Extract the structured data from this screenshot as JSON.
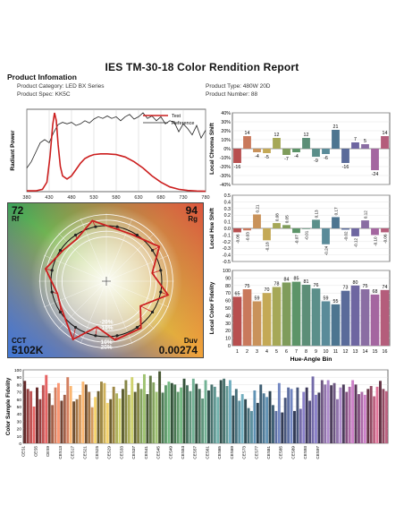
{
  "report": {
    "title": "IES TM-30-18 Color Rendition Report",
    "section_title": "Product Infomation",
    "category": "Product Category: LED BX Series",
    "spec": "Product Spec: KK5C",
    "type": "Product Type: 480W  20D",
    "number": "Product Number: 88"
  },
  "colors": {
    "test": "#cc1f1f",
    "reference": "#222222",
    "bins": [
      "#b84f4f",
      "#c9795c",
      "#c9925a",
      "#c4a956",
      "#a6a857",
      "#7f9c5b",
      "#5c9468",
      "#5c8e77",
      "#5b8f8a",
      "#5a8b99",
      "#4d7590",
      "#5a6b9a",
      "#6e66a1",
      "#8a6ea3",
      "#a466a0",
      "#b45d7b"
    ]
  },
  "spd": {
    "ylabel": "Radiant Power",
    "x_ticks": [
      "380",
      "430",
      "480",
      "530",
      "580",
      "630",
      "680",
      "730",
      "780"
    ],
    "xlim": [
      380,
      780
    ],
    "legend_test": "Test",
    "legend_reference": "Reference",
    "test_wl": [
      380,
      400,
      415,
      425,
      432,
      438,
      442,
      446,
      450,
      455,
      460,
      470,
      480,
      490,
      500,
      510,
      520,
      530,
      545,
      560,
      580,
      600,
      620,
      640,
      660,
      680,
      700,
      720,
      740,
      760,
      780
    ],
    "test_power": [
      0.01,
      0.01,
      0.03,
      0.12,
      0.45,
      0.85,
      1.0,
      0.9,
      0.6,
      0.32,
      0.2,
      0.16,
      0.2,
      0.28,
      0.36,
      0.42,
      0.45,
      0.47,
      0.48,
      0.48,
      0.47,
      0.44,
      0.38,
      0.3,
      0.2,
      0.12,
      0.06,
      0.03,
      0.015,
      0.008,
      0.004
    ],
    "ref_wl": [
      380,
      390,
      400,
      410,
      420,
      430,
      440,
      450,
      460,
      470,
      480,
      490,
      500,
      510,
      520,
      530,
      540,
      550,
      560,
      570,
      580,
      590,
      600,
      610,
      620,
      630,
      640,
      650,
      660,
      670,
      680,
      690,
      700,
      710,
      720,
      730,
      740,
      750,
      760,
      770,
      780
    ],
    "ref_power": [
      0.3,
      0.38,
      0.5,
      0.62,
      0.66,
      0.62,
      0.75,
      0.85,
      0.88,
      0.86,
      0.88,
      0.84,
      0.86,
      0.9,
      0.87,
      0.92,
      0.95,
      0.93,
      0.96,
      0.93,
      0.95,
      0.9,
      0.95,
      0.98,
      0.92,
      0.95,
      1.0,
      0.93,
      0.96,
      0.9,
      0.95,
      0.86,
      0.9,
      0.88,
      0.76,
      0.86,
      0.8,
      0.72,
      0.84,
      0.68,
      0.78
    ]
  },
  "chroma": {
    "ylabel": "Local Chroma Shift",
    "y_ticks": [
      "40%",
      "30%",
      "20%",
      "10%",
      "0%",
      "-10%",
      "-20%",
      "-30%",
      "-40%"
    ],
    "values": [
      -16,
      14,
      -4,
      -5,
      12,
      -7,
      -4,
      12,
      -9,
      -6,
      21,
      -16,
      7,
      5,
      -24,
      14
    ],
    "labels": [
      "-16",
      "14",
      "-4",
      "-5",
      "12",
      "-7",
      "-4",
      "12",
      "-9",
      "-6",
      "21",
      "-16",
      "7",
      "5",
      "-24",
      "14"
    ]
  },
  "hue": {
    "ylabel": "Local Hue Shift",
    "y_ticks": [
      "0.5",
      "0.4",
      "0.3",
      "0.2",
      "0.1",
      "0.0",
      "-0.1",
      "-0.2",
      "-0.3",
      "-0.4",
      "-0.5"
    ],
    "values": [
      -0.06,
      -0.03,
      0.21,
      -0.18,
      0.08,
      0.05,
      -0.07,
      -0.01,
      0.13,
      -0.24,
      0.17,
      -0.02,
      -0.12,
      0.12,
      -0.1,
      -0.06
    ],
    "labels": [
      "-0.06",
      "-0.03",
      "0.21",
      "-0.18",
      "0.08",
      "0.05",
      "-0.07",
      "-0.01",
      "0.13",
      "-0.24",
      "0.17",
      "-0.02",
      "-0.12",
      "0.12",
      "-0.10",
      "-0.06"
    ]
  },
  "fidelity": {
    "ylabel": "Local Color Fidelity",
    "xlabel": "Hue-Angle Bin",
    "y_ticks": [
      "100",
      "90",
      "80",
      "70",
      "60",
      "50",
      "40",
      "30",
      "20",
      "10",
      "0"
    ],
    "bins": [
      "1",
      "2",
      "3",
      "4",
      "5",
      "6",
      "7",
      "8",
      "9",
      "10",
      "11",
      "12",
      "13",
      "14",
      "15",
      "16"
    ],
    "values": [
      65,
      75,
      59,
      70,
      78,
      84,
      85,
      81,
      76,
      59,
      55,
      73,
      80,
      75,
      68,
      74
    ]
  },
  "vector": {
    "rf_value": "72",
    "rf_label": "Rf",
    "rg_value": "94",
    "rg_label": "Rg",
    "cct_label": "CCT",
    "cct_value": "5102K",
    "duv_label": "Duv",
    "duv_value": "0.00274",
    "ring_labels": [
      "-20%",
      "-10%",
      "10%",
      "20%"
    ]
  },
  "samples": {
    "ylabel": "Color Sample Fidelity",
    "y_ticks": [
      "100",
      "90",
      "80",
      "70",
      "60",
      "50",
      "40",
      "30",
      "20",
      "10",
      "0"
    ],
    "tick_labels": [
      "CES1",
      "CES5",
      "CES9",
      "CES13",
      "CES17",
      "CES21",
      "CES25",
      "CES29",
      "CES33",
      "CES37",
      "CES41",
      "CES45",
      "CES49",
      "CES53",
      "CES57",
      "CES61",
      "CES65",
      "CES69",
      "CES73",
      "CES77",
      "CES81",
      "CES85",
      "CES89",
      "CES93",
      "CES97"
    ],
    "values": [
      85,
      74,
      71,
      50,
      76,
      60,
      79,
      93,
      68,
      52,
      76,
      82,
      58,
      66,
      90,
      78,
      57,
      60,
      66,
      84,
      80,
      70,
      49,
      63,
      71,
      84,
      82,
      55,
      60,
      77,
      68,
      61,
      74,
      86,
      66,
      90,
      70,
      82,
      74,
      94,
      67,
      92,
      83,
      70,
      98,
      69,
      79,
      84,
      82,
      80,
      70,
      76,
      88,
      79,
      71,
      88,
      81,
      74,
      61,
      86,
      72,
      80,
      77,
      63,
      86,
      88,
      78,
      86,
      65,
      74,
      58,
      67,
      60,
      48,
      44,
      72,
      55,
      80,
      68,
      63,
      71,
      52,
      44,
      82,
      42,
      62,
      76,
      74,
      44,
      76,
      47,
      70,
      76,
      58,
      91,
      66,
      69,
      86,
      80,
      86,
      79,
      82,
      60,
      76,
      80,
      70,
      77,
      86,
      80,
      67,
      70,
      66,
      74,
      78,
      64,
      77,
      85,
      74,
      71
    ]
  }
}
